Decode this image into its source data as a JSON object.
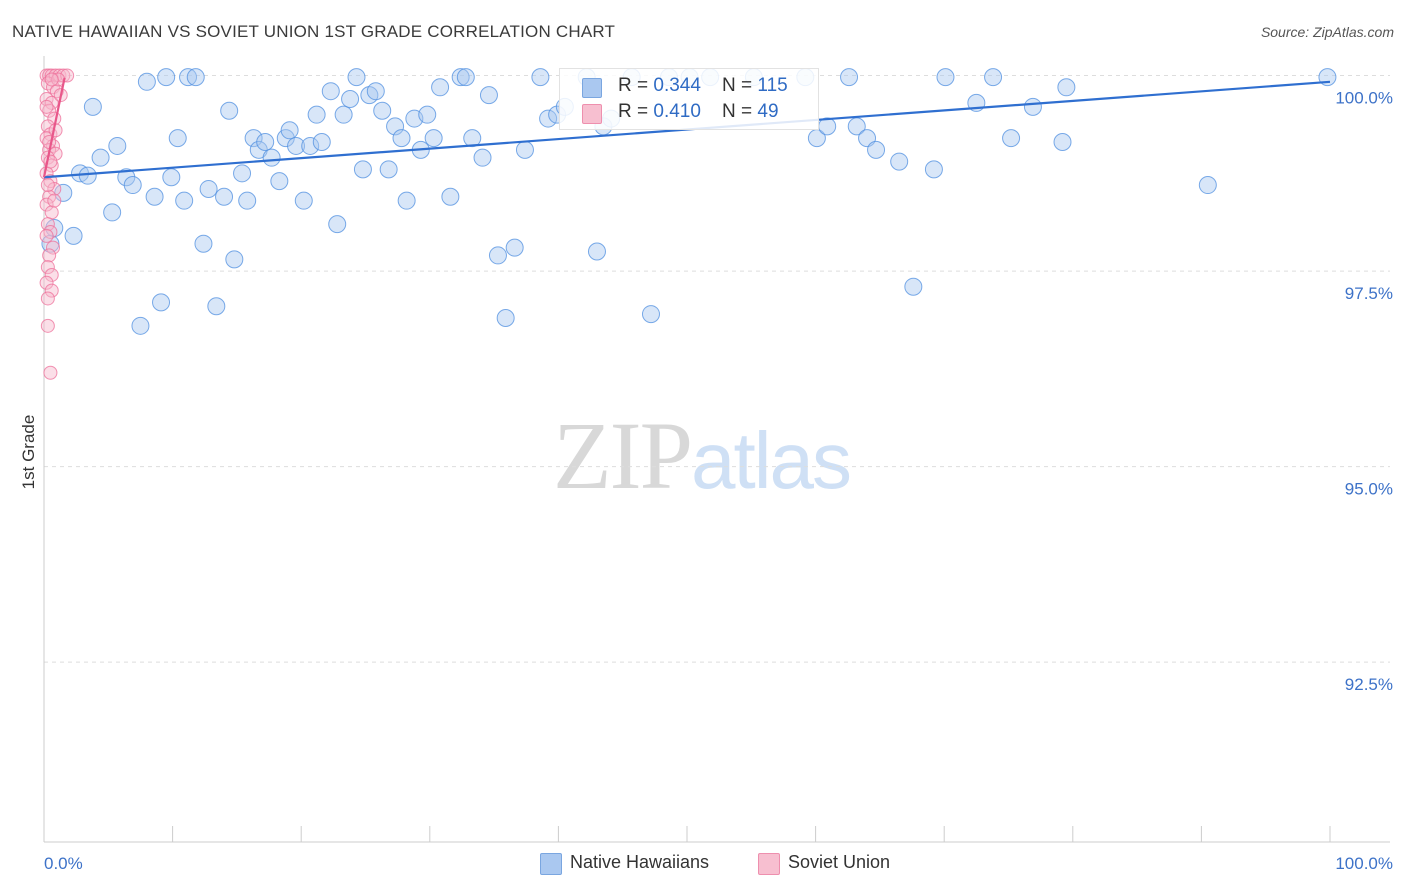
{
  "title": "NATIVE HAWAIIAN VS SOVIET UNION 1ST GRADE CORRELATION CHART",
  "source": "Source: ZipAtlas.com",
  "watermark": {
    "zip": "ZIP",
    "atlas": "atlas"
  },
  "legend": {
    "series1": {
      "r_label": "R = ",
      "r_value": "0.344",
      "n_label": "N = ",
      "n_value": "115"
    },
    "series2": {
      "r_label": "R = ",
      "r_value": "0.410",
      "n_label": "N = ",
      "n_value": " 49"
    }
  },
  "chart_data": {
    "type": "scatter",
    "title": "NATIVE HAWAIIAN VS SOVIET UNION 1ST GRADE CORRELATION CHART",
    "xlabel": "",
    "ylabel": "1st Grade",
    "xlim": [
      0,
      100
    ],
    "ylim": [
      90.2,
      100.25
    ],
    "x_tick_labels": [
      "0.0%",
      "100.0%"
    ],
    "y_ticks": [
      92.5,
      95.0,
      97.5,
      100.0
    ],
    "y_tick_labels": [
      "92.5%",
      "95.0%",
      "97.5%",
      "100.0%"
    ],
    "colors": {
      "blue": "#4f8fe0",
      "blue_fill": "#a9c7ef",
      "pink": "#ee6f9a",
      "pink_fill": "#f6b9cc",
      "axis_text": "#3d72c8",
      "grid": "#dddddd"
    },
    "series": [
      {
        "name": "Native Hawaiians",
        "color": "#4f8fe0",
        "r": 0.344,
        "n": 115,
        "trend": {
          "x": [
            0,
            100
          ],
          "y": [
            98.7,
            99.92
          ]
        },
        "points": [
          [
            0.5,
            97.85
          ],
          [
            0.8,
            98.05
          ],
          [
            1.5,
            98.5
          ],
          [
            2.3,
            97.95
          ],
          [
            2.8,
            98.75
          ],
          [
            3.4,
            98.72
          ],
          [
            3.8,
            99.6
          ],
          [
            4.4,
            98.95
          ],
          [
            5.3,
            98.25
          ],
          [
            5.7,
            99.1
          ],
          [
            6.4,
            98.7
          ],
          [
            6.9,
            98.6
          ],
          [
            7.5,
            96.8
          ],
          [
            8.0,
            99.92
          ],
          [
            8.6,
            98.45
          ],
          [
            9.1,
            97.1
          ],
          [
            9.5,
            99.98
          ],
          [
            9.9,
            98.7
          ],
          [
            10.4,
            99.2
          ],
          [
            10.9,
            98.4
          ],
          [
            11.2,
            99.98
          ],
          [
            11.8,
            99.98
          ],
          [
            12.4,
            97.85
          ],
          [
            12.8,
            98.55
          ],
          [
            13.4,
            97.05
          ],
          [
            14.0,
            98.45
          ],
          [
            14.4,
            99.55
          ],
          [
            14.8,
            97.65
          ],
          [
            15.4,
            98.75
          ],
          [
            15.8,
            98.4
          ],
          [
            16.3,
            99.2
          ],
          [
            16.7,
            99.05
          ],
          [
            17.2,
            99.15
          ],
          [
            17.7,
            98.95
          ],
          [
            18.3,
            98.65
          ],
          [
            18.8,
            99.2
          ],
          [
            19.1,
            99.3
          ],
          [
            19.6,
            99.1
          ],
          [
            20.2,
            98.4
          ],
          [
            20.7,
            99.1
          ],
          [
            21.2,
            99.5
          ],
          [
            21.6,
            99.15
          ],
          [
            22.3,
            99.8
          ],
          [
            22.8,
            98.1
          ],
          [
            23.3,
            99.5
          ],
          [
            23.8,
            99.7
          ],
          [
            24.3,
            99.98
          ],
          [
            24.8,
            98.8
          ],
          [
            25.3,
            99.75
          ],
          [
            25.8,
            99.8
          ],
          [
            26.3,
            99.55
          ],
          [
            26.8,
            98.8
          ],
          [
            27.3,
            99.35
          ],
          [
            27.8,
            99.2
          ],
          [
            28.2,
            98.4
          ],
          [
            28.8,
            99.45
          ],
          [
            29.3,
            99.05
          ],
          [
            29.8,
            99.5
          ],
          [
            30.3,
            99.2
          ],
          [
            30.8,
            99.85
          ],
          [
            31.6,
            98.45
          ],
          [
            32.4,
            99.98
          ],
          [
            32.8,
            99.98
          ],
          [
            33.3,
            99.2
          ],
          [
            34.1,
            98.95
          ],
          [
            34.6,
            99.75
          ],
          [
            35.3,
            97.7
          ],
          [
            35.9,
            96.9
          ],
          [
            36.6,
            97.8
          ],
          [
            37.4,
            99.05
          ],
          [
            38.6,
            99.98
          ],
          [
            39.2,
            99.45
          ],
          [
            39.9,
            99.5
          ],
          [
            40.5,
            99.6
          ],
          [
            42.2,
            99.98
          ],
          [
            43.0,
            97.75
          ],
          [
            43.5,
            99.35
          ],
          [
            44.1,
            99.45
          ],
          [
            45.7,
            99.98
          ],
          [
            47.2,
            96.95
          ],
          [
            48.6,
            99.98
          ],
          [
            50.2,
            99.98
          ],
          [
            51.8,
            99.98
          ],
          [
            55.2,
            99.98
          ],
          [
            59.2,
            99.98
          ],
          [
            60.1,
            99.2
          ],
          [
            60.9,
            99.35
          ],
          [
            62.6,
            99.98
          ],
          [
            63.2,
            99.35
          ],
          [
            64.0,
            99.2
          ],
          [
            64.7,
            99.05
          ],
          [
            66.5,
            98.9
          ],
          [
            67.6,
            97.3
          ],
          [
            69.2,
            98.8
          ],
          [
            70.1,
            99.98
          ],
          [
            72.5,
            99.65
          ],
          [
            73.8,
            99.98
          ],
          [
            75.2,
            99.2
          ],
          [
            76.9,
            99.6
          ],
          [
            79.2,
            99.15
          ],
          [
            79.5,
            99.85
          ],
          [
            90.5,
            98.6
          ],
          [
            99.8,
            99.98
          ]
        ]
      },
      {
        "name": "Soviet Union",
        "color": "#ee6f9a",
        "r": 0.41,
        "n": 49,
        "trend": {
          "x": [
            0,
            1.6
          ],
          "y": [
            98.7,
            99.97
          ]
        },
        "points": [
          [
            0.2,
            100.0
          ],
          [
            0.4,
            100.0
          ],
          [
            0.6,
            100.0
          ],
          [
            0.9,
            100.0
          ],
          [
            1.2,
            100.0
          ],
          [
            1.5,
            100.0
          ],
          [
            1.8,
            100.0
          ],
          [
            0.3,
            99.9
          ],
          [
            0.7,
            99.85
          ],
          [
            1.0,
            99.8
          ],
          [
            0.2,
            99.7
          ],
          [
            0.6,
            99.65
          ],
          [
            0.4,
            99.55
          ],
          [
            0.8,
            99.45
          ],
          [
            0.3,
            99.35
          ],
          [
            0.5,
            99.25
          ],
          [
            0.2,
            99.2
          ],
          [
            0.7,
            99.1
          ],
          [
            0.4,
            99.05
          ],
          [
            0.9,
            99.0
          ],
          [
            0.3,
            98.95
          ],
          [
            0.6,
            98.85
          ],
          [
            0.2,
            98.75
          ],
          [
            0.5,
            98.65
          ],
          [
            0.8,
            98.55
          ],
          [
            0.4,
            98.45
          ],
          [
            0.2,
            98.35
          ],
          [
            0.6,
            98.25
          ],
          [
            0.3,
            98.1
          ],
          [
            0.5,
            98.0
          ],
          [
            0.2,
            97.95
          ],
          [
            0.7,
            97.8
          ],
          [
            0.4,
            97.7
          ],
          [
            0.3,
            97.55
          ],
          [
            0.6,
            97.45
          ],
          [
            0.2,
            97.35
          ],
          [
            0.6,
            97.25
          ],
          [
            0.3,
            97.15
          ],
          [
            0.3,
            96.8
          ],
          [
            0.5,
            96.2
          ],
          [
            1.1,
            99.95
          ],
          [
            1.3,
            99.75
          ],
          [
            0.9,
            99.3
          ],
          [
            0.5,
            98.9
          ],
          [
            0.8,
            98.4
          ],
          [
            0.2,
            99.6
          ],
          [
            0.6,
            99.95
          ],
          [
            0.4,
            99.15
          ],
          [
            0.3,
            98.6
          ]
        ]
      }
    ]
  }
}
